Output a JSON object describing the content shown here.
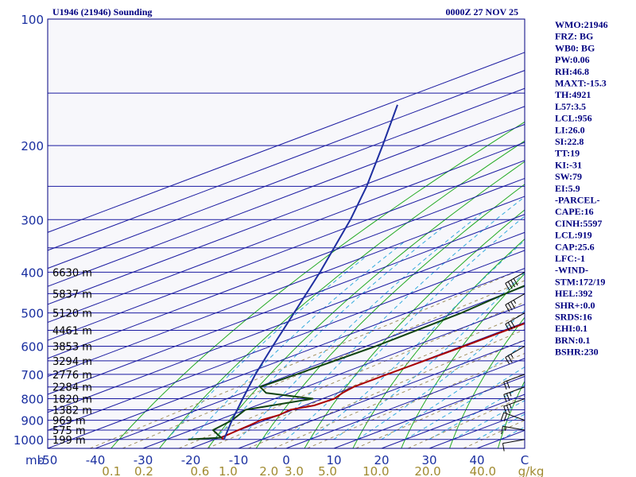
{
  "header": {
    "station": "U1946 (21946) Sounding",
    "time": "0000Z 27 NOV 25"
  },
  "chart_data": {
    "type": "line",
    "diagram": "skew-T log-P",
    "pressure_ticks": [
      100,
      200,
      300,
      400,
      500,
      600,
      700,
      800,
      900,
      1000
    ],
    "temperature_ticks": [
      "-50",
      "-40",
      "-30",
      "-20",
      "-10",
      "0",
      "10",
      "20",
      "30",
      "40",
      "C"
    ],
    "mixing_ratio_ticks": [
      "0.1",
      "0.2",
      "0.6",
      "1.0",
      "2.0",
      "3.0",
      "5.0",
      "10.0",
      "20.0",
      "40.0",
      "g/kg"
    ],
    "pressure_unit": "mb",
    "height_labels": [
      {
        "text": "6630 m",
        "p": 400
      },
      {
        "text": "5837 m",
        "p": 450
      },
      {
        "text": "5120 m",
        "p": 500
      },
      {
        "text": "4461 m",
        "p": 550
      },
      {
        "text": "3853 m",
        "p": 600
      },
      {
        "text": "3294 m",
        "p": 650
      },
      {
        "text": "2776 m",
        "p": 700
      },
      {
        "text": "2284 m",
        "p": 750
      },
      {
        "text": "1820 m",
        "p": 800
      },
      {
        "text": "1382 m",
        "p": 850
      },
      {
        "text": "969 m",
        "p": 900
      },
      {
        "text": "575 m",
        "p": 950
      },
      {
        "text": "199 m",
        "p": 1000
      }
    ],
    "series": [
      {
        "kind": "temperature",
        "color": "#aa0000",
        "points": [
          [
            1000,
            -18
          ],
          [
            990,
            -19.6
          ],
          [
            950,
            -20.2
          ],
          [
            925,
            -20.5
          ],
          [
            900,
            -21
          ],
          [
            875,
            -20
          ],
          [
            850,
            -20.6
          ],
          [
            830,
            -18
          ],
          [
            800,
            -17.5
          ],
          [
            775,
            -19
          ],
          [
            750,
            -20
          ],
          [
            700,
            -20
          ],
          [
            600,
            -19.5
          ],
          [
            500,
            -19.4
          ],
          [
            450,
            -20.8
          ],
          [
            400,
            -22
          ],
          [
            350,
            -22.6
          ]
        ]
      },
      {
        "kind": "dewpoint",
        "color": "#114411",
        "points": [
          [
            1000,
            -25.5
          ],
          [
            990,
            -19.6
          ],
          [
            950,
            -25.5
          ],
          [
            900,
            -27
          ],
          [
            850,
            -30
          ],
          [
            800,
            -22
          ],
          [
            775,
            -35
          ],
          [
            750,
            -39.6
          ],
          [
            700,
            -39
          ],
          [
            600,
            -38
          ],
          [
            500,
            -38.5
          ],
          [
            450,
            -40
          ],
          [
            400,
            -41
          ],
          [
            350,
            -40
          ]
        ]
      },
      {
        "kind": "parcel",
        "color": "#1f2fa0",
        "points": [
          [
            1000,
            -18
          ],
          [
            900,
            -27
          ],
          [
            800,
            -36.7
          ],
          [
            700,
            -47.6
          ],
          [
            600,
            -59.6
          ],
          [
            500,
            -73.6
          ],
          [
            400,
            -90.8
          ],
          [
            300,
            -113.6
          ],
          [
            250,
            -128.7
          ],
          [
            200,
            -148
          ],
          [
            160,
            -167.5
          ]
        ]
      }
    ],
    "wind_barbs": [
      {
        "p": 1000,
        "dir": 260,
        "spd": 10
      },
      {
        "p": 950,
        "dir": 280,
        "spd": 15
      },
      {
        "p": 900,
        "dir": 290,
        "spd": 20
      },
      {
        "p": 800,
        "dir": 250,
        "spd": 25
      },
      {
        "p": 750,
        "dir": 250,
        "spd": 25
      },
      {
        "p": 700,
        "dir": 250,
        "spd": 20
      },
      {
        "p": 600,
        "dir": 240,
        "spd": 25
      },
      {
        "p": 500,
        "dir": 240,
        "spd": 30
      },
      {
        "p": 450,
        "dir": 240,
        "spd": 35
      },
      {
        "p": 400,
        "dir": 240,
        "spd": 40
      }
    ],
    "grid": true
  },
  "indices": [
    "WMO:21946",
    "FRZ: BG",
    "WB0: BG",
    "PW:0.06",
    "RH:46.8",
    "MAXT:-15.3",
    "TH:4921",
    "L57:3.5",
    "LCL:956",
    "LI:26.0",
    "SI:22.8",
    "TT:19",
    "KI:-31",
    "SW:79",
    "EI:5.9",
    "-PARCEL-",
    "CAPE:16",
    "CINH:5597",
    "LCL:919",
    "CAP:25.6",
    "LFC:-1",
    "-WIND-",
    "STM:172/19",
    "HEL:392",
    "SHR+:0.0",
    "SRDS:16",
    "EHI:0.1",
    "BRN:0.1",
    "BSHR:230"
  ],
  "colors": {
    "frame": "#000080",
    "isobar": "#1a1aa0",
    "isotherm": "#1a1aa0",
    "dry_adiabat": "#22aa22",
    "moist_adiabat": "#33aadd",
    "mixing_ratio": "#a09060"
  }
}
